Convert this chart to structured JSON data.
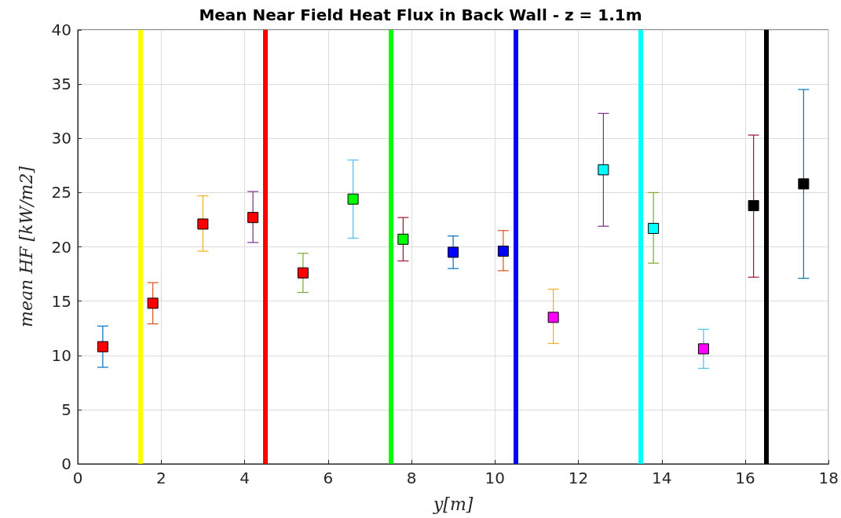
{
  "chart_data": {
    "type": "scatter",
    "title": "Mean Near Field Heat Flux in Back Wall - z = 1.1m",
    "xlabel": "y[m]",
    "ylabel": "mean HF [kW/m2]",
    "x": [
      0.6,
      1.8,
      3.0,
      4.2,
      5.4,
      6.6,
      7.8,
      9.0,
      10.2,
      11.4,
      12.6,
      13.8,
      15.0,
      16.2,
      17.4
    ],
    "values": [
      10.8,
      14.8,
      22.1,
      22.7,
      17.6,
      24.4,
      20.7,
      19.5,
      19.6,
      13.5,
      27.1,
      21.7,
      10.6,
      23.8,
      25.8
    ],
    "errors": [
      [
        8.9,
        12.7
      ],
      [
        12.9,
        16.7
      ],
      [
        19.6,
        24.7
      ],
      [
        20.4,
        25.1
      ],
      [
        15.8,
        19.4
      ],
      [
        20.8,
        28.0
      ],
      [
        18.7,
        22.7
      ],
      [
        18.0,
        21.0
      ],
      [
        17.8,
        21.5
      ],
      [
        11.1,
        16.1
      ],
      [
        21.9,
        32.3
      ],
      [
        18.5,
        25.0
      ],
      [
        8.8,
        12.4
      ],
      [
        17.2,
        30.3
      ],
      [
        17.1,
        34.5
      ]
    ],
    "colors": [
      "#ff0000",
      "#ff0000",
      "#ff0000",
      "#ff0000",
      "#ff0000",
      "#00ff00",
      "#00ff00",
      "#0000ff",
      "#0000ff",
      "#ff00ff",
      "#00ffff",
      "#00ffff",
      "#ff00ff",
      "#000000",
      "#000000"
    ],
    "marker": "square",
    "xlim": [
      0,
      18
    ],
    "xticks": [
      0,
      2,
      4,
      6,
      8,
      10,
      12,
      14,
      16,
      18
    ],
    "ylim": [
      0,
      40
    ],
    "yticks": [
      0,
      5,
      10,
      15,
      20,
      25,
      30,
      35,
      40
    ],
    "grid": true,
    "ref_lines": [
      {
        "axis": "x",
        "value": 1.5,
        "color": "#ffff00"
      },
      {
        "axis": "x",
        "value": 4.5,
        "color": "#ff0000"
      },
      {
        "axis": "x",
        "value": 7.5,
        "color": "#00ff00"
      },
      {
        "axis": "x",
        "value": 10.5,
        "color": "#0000ff"
      },
      {
        "axis": "x",
        "value": 13.5,
        "color": "#00ffff"
      },
      {
        "axis": "x",
        "value": 16.5,
        "color": "#000000"
      }
    ]
  }
}
